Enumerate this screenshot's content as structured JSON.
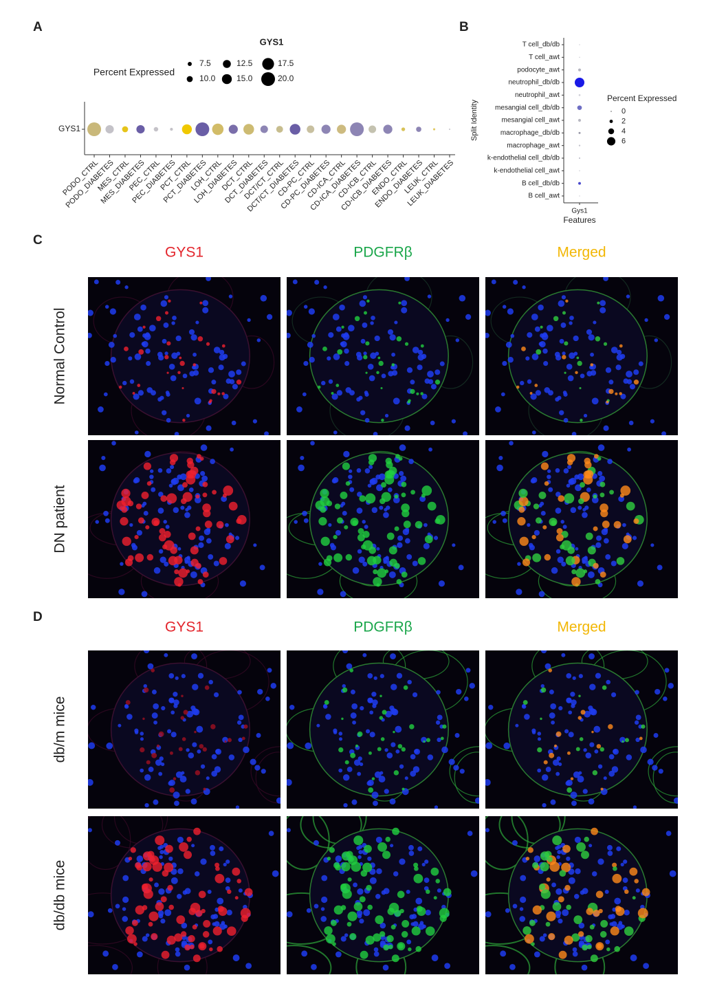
{
  "chart_data": [
    {
      "type": "dot",
      "panel_label": "A",
      "title": "GYS1",
      "legend_title": "Percent Expressed",
      "size_ticks": [
        7.5,
        {
          "value": 10,
          "label": "10.0"
        },
        12.5,
        {
          "value": 15,
          "label": "15.0"
        },
        17.5,
        {
          "value": 20,
          "label": "20.0"
        }
      ],
      "sizelim": [
        4,
        20
      ],
      "y_categories": [
        "GYS1"
      ],
      "categories": [
        "PODO_CTRL",
        "PODO_DIABETES",
        "MES_CTRL",
        "MES_DIABETES",
        "PEC_CTRL",
        "PEC_DIABETES",
        "PCT_CTRL",
        "PCT_DIABETES",
        "LOH_CTRL",
        "LOH_DIABETES",
        "DCT_CTRL",
        "DCT_DIABETES",
        "DCT/CT_CTRL",
        "DCT/CT_DIABETES",
        "CD-PC_CTRL",
        "CD-PC_DIABETES",
        "CD-ICA_CTRL",
        "CD-ICA_DIABETES",
        "CD-ICB_CTRL",
        "CD-ICB_DIABETES",
        "ENDO_CTRL",
        "ENDO_DIABETES",
        "LEUK_CTRL",
        "LEUK_DIABETES"
      ],
      "values": [
        20,
        13,
        10,
        13,
        8,
        6,
        15,
        20,
        17,
        14,
        16,
        12,
        11,
        16,
        12,
        14,
        14,
        20,
        12,
        14,
        7,
        9,
        5,
        4
      ],
      "colors": [
        "#c9b87a",
        "#c4c2c8",
        "#e6c41a",
        "#6a5ea6",
        "#c4c2c8",
        "#c4c2c8",
        "#f0c800",
        "#6a5ea6",
        "#d2bc68",
        "#7a6eaa",
        "#cdbb72",
        "#8d85b4",
        "#c7bd8e",
        "#6a5ea6",
        "#c8c0a0",
        "#8d85b4",
        "#cdbb80",
        "#8d85b4",
        "#c4c2b0",
        "#8d85b4",
        "#d8c258",
        "#8d85b4",
        "#e0c860",
        "#c4c2c8"
      ]
    },
    {
      "type": "dot",
      "panel_label": "B",
      "legend_title": "Percent Expressed",
      "xlabel": "Features",
      "ylabel": "Split Identity",
      "size_ticks": [
        0,
        2,
        4,
        6
      ],
      "sizelim": [
        0,
        7
      ],
      "x_categories": [
        "Gys1"
      ],
      "categories": [
        "T cell_db/db",
        "T cell_awt",
        "podocyte_awt",
        "neutrophil_db/db",
        "neutrophil_awt",
        "mesangial cell_db/db",
        "mesangial cell_awt",
        "macrophage_db/db",
        "macrophage_awt",
        "k-endothelial cell_db/db",
        "k-endothelial cell_awt",
        "B cell_db/db",
        "B cell_awt"
      ],
      "values": [
        0.2,
        0.3,
        1.6,
        7,
        0.8,
        3,
        1.6,
        1,
        0.6,
        0.5,
        0.3,
        1.5,
        0.2
      ],
      "colors": [
        "#cfcfd6",
        "#d6d6dc",
        "#b4b4c0",
        "#1a1ae6",
        "#d0d0d8",
        "#6e6ec4",
        "#b8b8c2",
        "#9a9aaa",
        "#c4c4cc",
        "#b8b8c4",
        "#d6d6dc",
        "#4848cc",
        "#d0d0d8"
      ]
    }
  ],
  "image_panels": [
    {
      "panel_label": "C",
      "columns": [
        "GYS1",
        "PDGFRβ",
        "Merged"
      ],
      "column_colors": [
        "#e3242b",
        "#1aa64a",
        "#f2b705"
      ],
      "rows": [
        "Normal Control",
        "DN patient"
      ]
    },
    {
      "panel_label": "D",
      "columns": [
        "GYS1",
        "PDGFRβ",
        "Merged"
      ],
      "column_colors": [
        "#e3242b",
        "#1aa64a",
        "#f2b705"
      ],
      "rows": [
        "db/m mice",
        "db/db mice"
      ]
    }
  ]
}
